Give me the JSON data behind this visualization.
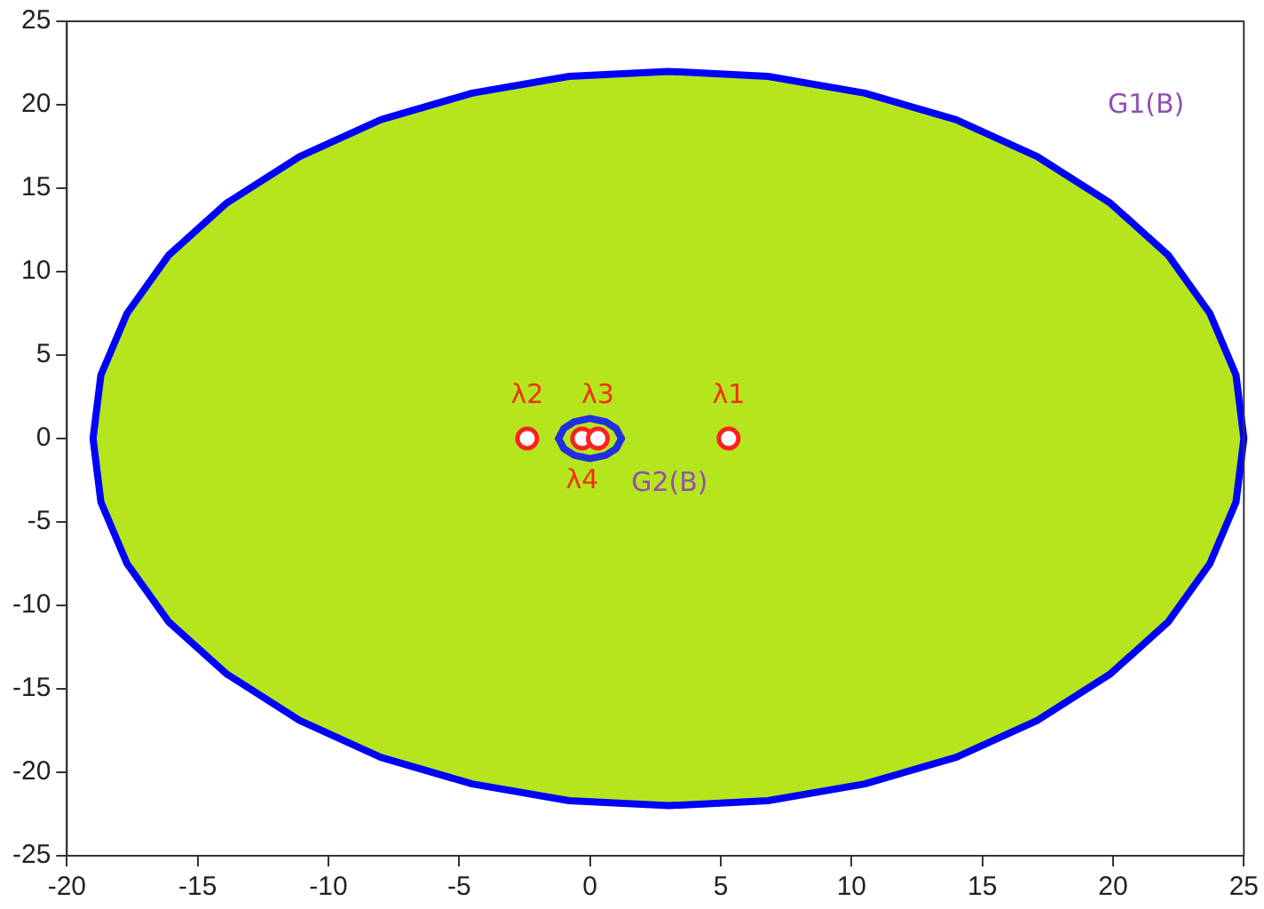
{
  "chart_data": {
    "type": "scatter",
    "xlim": [
      -20,
      25
    ],
    "ylim": [
      -25,
      25
    ],
    "xticks": [
      -20,
      -15,
      -10,
      -5,
      0,
      5,
      10,
      15,
      20,
      25
    ],
    "yticks": [
      -25,
      -20,
      -15,
      -10,
      -5,
      0,
      5,
      10,
      15,
      20,
      25
    ],
    "grid": false,
    "legend": false,
    "series": [
      {
        "type": "area",
        "name": "G1(B)",
        "color": "#b5e61d",
        "x": [
          3,
          6.8,
          10.5,
          14,
          17.1,
          19.9,
          22.1,
          23.7,
          24.7,
          25,
          24.7,
          23.7,
          22.1,
          19.9,
          17.1,
          14,
          10.5,
          6.8,
          3,
          -0.8,
          -4.5,
          -8,
          -11.1,
          -13.9,
          -16.1,
          -17.7,
          -18.7,
          -19,
          -18.7,
          -17.7,
          -16.1,
          -13.9,
          -11.1,
          -8,
          -4.5,
          -0.8
        ],
        "values": [
          -22,
          -21.7,
          -20.7,
          -19.1,
          -16.9,
          -14.1,
          -11,
          -7.5,
          -3.8,
          0,
          3.8,
          7.5,
          11,
          14.1,
          16.9,
          19.1,
          20.7,
          21.7,
          22,
          21.7,
          20.7,
          19.1,
          16.9,
          14.1,
          11,
          7.5,
          3.8,
          0,
          -3.8,
          -7.5,
          -11,
          -14.1,
          -16.9,
          -19.1,
          -20.7,
          -21.7
        ]
      },
      {
        "type": "line",
        "color": "#2030e0",
        "marker": "none",
        "x": [
          1.2,
          1,
          0.6,
          0,
          -0.6,
          -1,
          -1.2
        ],
        "values": [
          0,
          0.6,
          1,
          1.2,
          1,
          0.6,
          0
        ]
      },
      {
        "type": "line",
        "name": "G2(B)",
        "color": "#2030e0",
        "marker": "none",
        "x": [
          -1.2,
          -1,
          -0.6,
          0,
          0.6,
          1,
          1.2
        ],
        "values": [
          0,
          -0.6,
          -1,
          -1.2,
          -1,
          -0.6,
          0
        ]
      },
      {
        "name": "λ1",
        "color": "#ff2020",
        "marker": "circle",
        "x": [
          5.3
        ],
        "values": [
          0
        ]
      },
      {
        "name": "λ2",
        "color": "#ff2020",
        "marker": "circle",
        "x": [
          -2.4
        ],
        "values": [
          0
        ]
      },
      {
        "name": "λ3",
        "color": "#ff2020",
        "marker": "circle",
        "x": [
          0.3
        ],
        "values": [
          0
        ]
      },
      {
        "name": "λ4",
        "color": "#ff2020",
        "marker": "circle",
        "x": [
          -0.3
        ],
        "values": [
          0
        ]
      }
    ]
  }
}
